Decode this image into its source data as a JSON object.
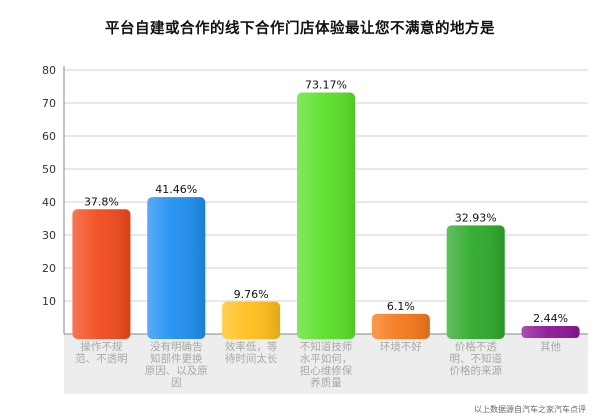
{
  "source_note": "以上数据源自汽车之家汽车点评",
  "colors": {
    "grid": "#d0d0d0",
    "axis": "#888888",
    "tick_text": "#333333",
    "bar_label_text": "#111111",
    "cat_text": "#a8a8a8",
    "panel_fill": "#ededed"
  },
  "chart_data": {
    "type": "bar",
    "title": "平台自建或合作的线下合作门店体验最让您不满意的地方是",
    "xlabel": "",
    "ylabel": "",
    "ylim": [
      0,
      80
    ],
    "yticks": [
      10,
      20,
      30,
      40,
      50,
      60,
      70,
      80
    ],
    "grid": true,
    "legend": "none",
    "categories": [
      [
        "操作不规",
        "范、不透明"
      ],
      [
        "没有明确告",
        "知部件更换",
        "原因、以及原",
        "因"
      ],
      [
        "效率低，等",
        "待时间太长"
      ],
      [
        "不知道技师",
        "水平如何，",
        "担心维修保",
        "养质量"
      ],
      [
        "环境不好"
      ],
      [
        "价格不透",
        "明、不知道",
        "价格的来源"
      ],
      [
        "其他"
      ]
    ],
    "values": [
      37.8,
      41.46,
      9.76,
      73.17,
      6.1,
      32.93,
      2.44
    ],
    "value_labels": [
      "37.8%",
      "41.46%",
      "9.76%",
      "73.17%",
      "6.1%",
      "32.93%",
      "2.44%"
    ],
    "bar_colors": [
      "#f24a1c",
      "#1f8ff2",
      "#ffbf1a",
      "#5ae12a",
      "#f6781a",
      "#2daa2b",
      "#8e1596"
    ]
  }
}
